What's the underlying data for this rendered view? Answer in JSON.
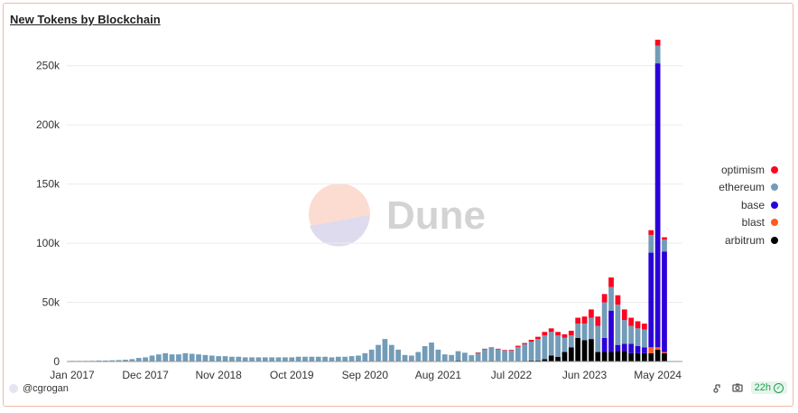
{
  "title": "New Tokens by Blockchain",
  "author": "@cgrogan",
  "refresh_badge": "22h",
  "watermark": "Dune",
  "colors": {
    "optimism": "#ff0420",
    "ethereum": "#739cb8",
    "base": "#2c00d9",
    "blast": "#ff5a1f",
    "arbitrum": "#000000"
  },
  "chart_data": {
    "type": "bar",
    "stacked": true,
    "title": "New Tokens by Blockchain",
    "xlabel": "",
    "ylabel": "",
    "ylim": [
      0,
      275000
    ],
    "y_ticks": [
      0,
      50000,
      100000,
      150000,
      200000,
      250000
    ],
    "y_tick_labels": [
      "0",
      "50k",
      "100k",
      "150k",
      "200k",
      "250k"
    ],
    "x_tick_labels": [
      {
        "label": "Jan 2017",
        "index": 0
      },
      {
        "label": "Dec 2017",
        "index": 11
      },
      {
        "label": "Nov 2018",
        "index": 22
      },
      {
        "label": "Oct 2019",
        "index": 33
      },
      {
        "label": "Sep 2020",
        "index": 44
      },
      {
        "label": "Aug 2021",
        "index": 55
      },
      {
        "label": "Jul 2022",
        "index": 66
      },
      {
        "label": "Jun 2023",
        "index": 77
      },
      {
        "label": "May 2024",
        "index": 88
      }
    ],
    "legend": [
      "optimism",
      "ethereum",
      "base",
      "blast",
      "arbitrum"
    ],
    "legend_position": "right",
    "series": [
      {
        "name": "arbitrum",
        "values": [
          0,
          0,
          0,
          0,
          0,
          0,
          0,
          0,
          0,
          0,
          0,
          0,
          0,
          0,
          0,
          0,
          0,
          0,
          0,
          0,
          0,
          0,
          0,
          0,
          0,
          0,
          0,
          0,
          0,
          0,
          0,
          0,
          0,
          0,
          0,
          0,
          0,
          0,
          0,
          0,
          0,
          0,
          0,
          0,
          0,
          0,
          0,
          0,
          0,
          0,
          0,
          0,
          0,
          0,
          0,
          0,
          0,
          500,
          700,
          400,
          300,
          400,
          500,
          600,
          500,
          400,
          400,
          300,
          600,
          800,
          900,
          2000,
          5000,
          4000,
          8000,
          12000,
          20000,
          18000,
          19000,
          8000,
          8000,
          8000,
          9000,
          9000,
          7000,
          7000,
          7000,
          7000,
          10000,
          7000
        ]
      },
      {
        "name": "blast",
        "values": [
          0,
          0,
          0,
          0,
          0,
          0,
          0,
          0,
          0,
          0,
          0,
          0,
          0,
          0,
          0,
          0,
          0,
          0,
          0,
          0,
          0,
          0,
          0,
          0,
          0,
          0,
          0,
          0,
          0,
          0,
          0,
          0,
          0,
          0,
          0,
          0,
          0,
          0,
          0,
          0,
          0,
          0,
          0,
          0,
          0,
          0,
          0,
          0,
          0,
          0,
          0,
          0,
          0,
          0,
          0,
          0,
          0,
          0,
          0,
          0,
          0,
          0,
          0,
          0,
          0,
          0,
          0,
          0,
          0,
          0,
          0,
          0,
          0,
          0,
          0,
          0,
          0,
          0,
          0,
          0,
          0,
          0,
          0,
          0,
          0,
          0,
          0,
          5000,
          2000,
          1000
        ]
      },
      {
        "name": "base",
        "values": [
          0,
          0,
          0,
          0,
          0,
          0,
          0,
          0,
          0,
          0,
          0,
          0,
          0,
          0,
          0,
          0,
          0,
          0,
          0,
          0,
          0,
          0,
          0,
          0,
          0,
          0,
          0,
          0,
          0,
          0,
          0,
          0,
          0,
          0,
          0,
          0,
          0,
          0,
          0,
          0,
          0,
          0,
          0,
          0,
          0,
          0,
          0,
          0,
          0,
          0,
          0,
          0,
          0,
          0,
          0,
          0,
          0,
          0,
          0,
          0,
          0,
          0,
          0,
          0,
          0,
          0,
          0,
          0,
          0,
          0,
          0,
          0,
          0,
          0,
          0,
          0,
          0,
          0,
          0,
          0,
          12000,
          35000,
          5000,
          6000,
          8000,
          6000,
          5000,
          80000,
          240000,
          85000
        ]
      },
      {
        "name": "ethereum",
        "values": [
          500,
          500,
          500,
          600,
          800,
          800,
          1000,
          1200,
          1500,
          2000,
          3000,
          3500,
          5000,
          6000,
          7000,
          6000,
          6000,
          7000,
          6500,
          6000,
          5500,
          5000,
          4500,
          4500,
          4000,
          4000,
          3500,
          3500,
          3500,
          3500,
          3500,
          3500,
          3500,
          3500,
          4000,
          4000,
          4000,
          4000,
          4000,
          3500,
          4000,
          4000,
          4500,
          5000,
          7000,
          10000,
          14000,
          19000,
          14000,
          10000,
          5500,
          5000,
          8000,
          13000,
          16000,
          10000,
          6000,
          5000,
          8000,
          7000,
          5000,
          7000,
          10000,
          11000,
          10000,
          9000,
          9000,
          12000,
          14000,
          16000,
          18000,
          20000,
          20000,
          18000,
          12000,
          10000,
          12000,
          14000,
          18000,
          22000,
          30000,
          20000,
          34000,
          20000,
          15000,
          15000,
          15000,
          15000,
          15000,
          10000
        ]
      },
      {
        "name": "optimism",
        "values": [
          0,
          0,
          0,
          0,
          0,
          0,
          0,
          0,
          0,
          0,
          0,
          0,
          0,
          0,
          0,
          0,
          0,
          0,
          0,
          0,
          0,
          0,
          0,
          0,
          0,
          0,
          0,
          0,
          0,
          0,
          0,
          0,
          0,
          0,
          0,
          0,
          0,
          0,
          0,
          0,
          0,
          0,
          0,
          0,
          0,
          0,
          0,
          0,
          0,
          0,
          0,
          0,
          0,
          0,
          0,
          0,
          0,
          0,
          0,
          0,
          0,
          200,
          300,
          300,
          300,
          300,
          500,
          1000,
          1000,
          1500,
          2000,
          3000,
          3000,
          3000,
          3000,
          4000,
          5000,
          6000,
          7000,
          8000,
          7000,
          8000,
          8000,
          9000,
          7000,
          6000,
          5000,
          4000,
          5000,
          2000
        ]
      }
    ]
  }
}
